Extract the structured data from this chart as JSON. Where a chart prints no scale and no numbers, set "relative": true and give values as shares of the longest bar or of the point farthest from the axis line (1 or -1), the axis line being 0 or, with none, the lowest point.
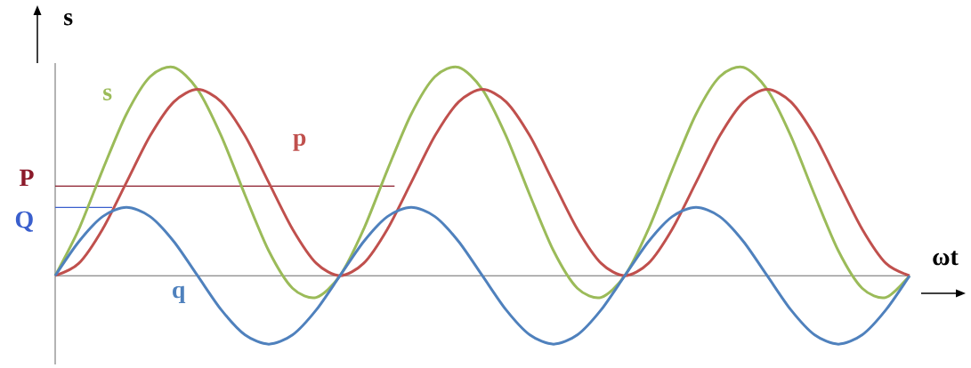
{
  "chart_data": {
    "type": "line",
    "relative": true,
    "xlabel": "ωt",
    "ylabel": "s",
    "categories": [
      null,
      null,
      null,
      null,
      null,
      null,
      null,
      null,
      null,
      null,
      null,
      null,
      null,
      null,
      null,
      null,
      null,
      null,
      null,
      null,
      null,
      null,
      null,
      null,
      null,
      null,
      null,
      null,
      null,
      null,
      null,
      null,
      null,
      null,
      null,
      null,
      null
    ],
    "series": [
      {
        "name": "s",
        "color": "#9bbb59",
        "values": [
          0,
          0.224,
          0.508,
          0.775,
          0.955,
          1,
          0.894,
          0.67,
          0.387,
          0.119,
          -0.06,
          -0.104,
          0,
          0.224,
          0.508,
          0.775,
          0.955,
          1,
          0.894,
          0.67,
          0.387,
          0.119,
          -0.06,
          -0.104,
          0,
          0.224,
          0.508,
          0.775,
          0.955,
          1,
          0.894,
          0.67,
          0.387,
          0.119,
          -0.06,
          -0.104,
          0
        ]
      },
      {
        "name": "p",
        "color": "#c0504d",
        "values": [
          0,
          0.06,
          0.224,
          0.447,
          0.671,
          0.834,
          0.894,
          0.834,
          0.671,
          0.447,
          0.224,
          0.06,
          0,
          0.06,
          0.224,
          0.447,
          0.671,
          0.834,
          0.894,
          0.834,
          0.671,
          0.447,
          0.224,
          0.06,
          0,
          0.06,
          0.224,
          0.447,
          0.671,
          0.834,
          0.894,
          0.834,
          0.671,
          0.447,
          0.224,
          0.06,
          0
        ]
      },
      {
        "name": "q",
        "color": "#4f81bd",
        "values": [
          0,
          0.164,
          0.284,
          0.328,
          0.284,
          0.164,
          0,
          -0.164,
          -0.284,
          -0.328,
          -0.284,
          -0.164,
          0,
          0.164,
          0.284,
          0.328,
          0.284,
          0.164,
          0,
          -0.164,
          -0.284,
          -0.328,
          -0.284,
          -0.164,
          0,
          0.164,
          0.284,
          0.328,
          0.284,
          0.164,
          0,
          -0.164,
          -0.284,
          -0.328,
          -0.284,
          -0.164,
          0
        ]
      }
    ],
    "ref_lines": [
      {
        "axis": "y",
        "value": 0.43,
        "label": "P",
        "color": "#8b1a2a"
      },
      {
        "axis": "y",
        "value": 0.328,
        "label": "Q",
        "color": "#3a5fcd"
      }
    ]
  }
}
